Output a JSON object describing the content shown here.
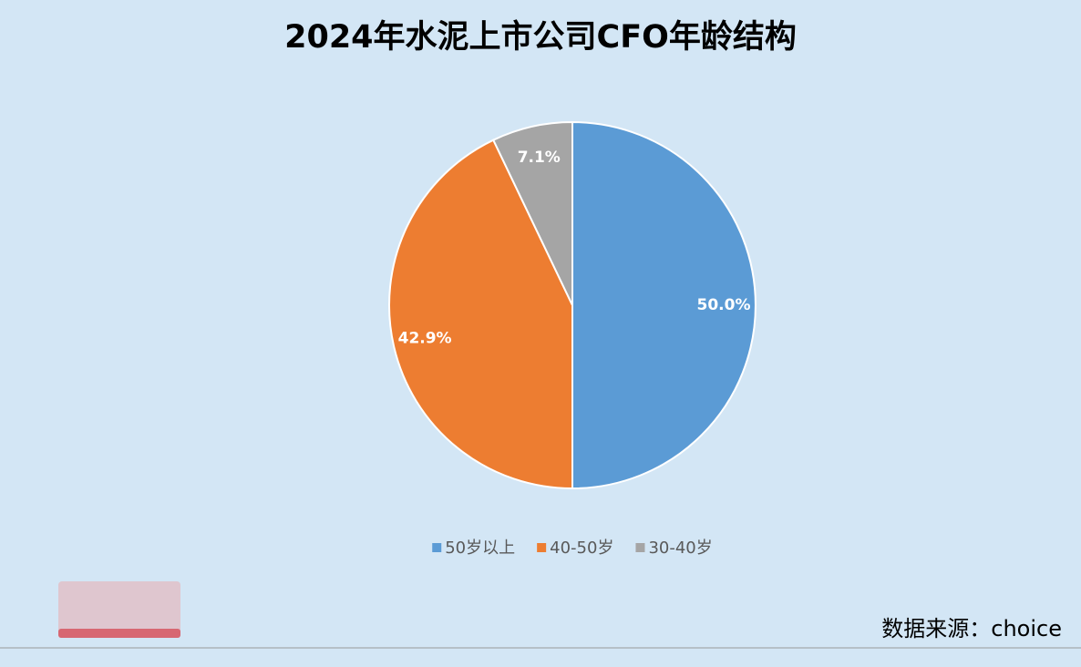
{
  "chart_data": {
    "type": "pie",
    "title": "2024年水泥上市公司CFO年龄结构",
    "categories": [
      "50岁以上",
      "40-50岁",
      "30-40岁"
    ],
    "values": [
      50.0,
      42.9,
      7.1
    ],
    "value_labels": [
      "50.0%",
      "42.9%",
      "7.1%"
    ],
    "colors": [
      "#5b9bd5",
      "#ed7d31",
      "#a5a5a5"
    ],
    "legend": "bottom",
    "source": "数据来源：choice"
  }
}
